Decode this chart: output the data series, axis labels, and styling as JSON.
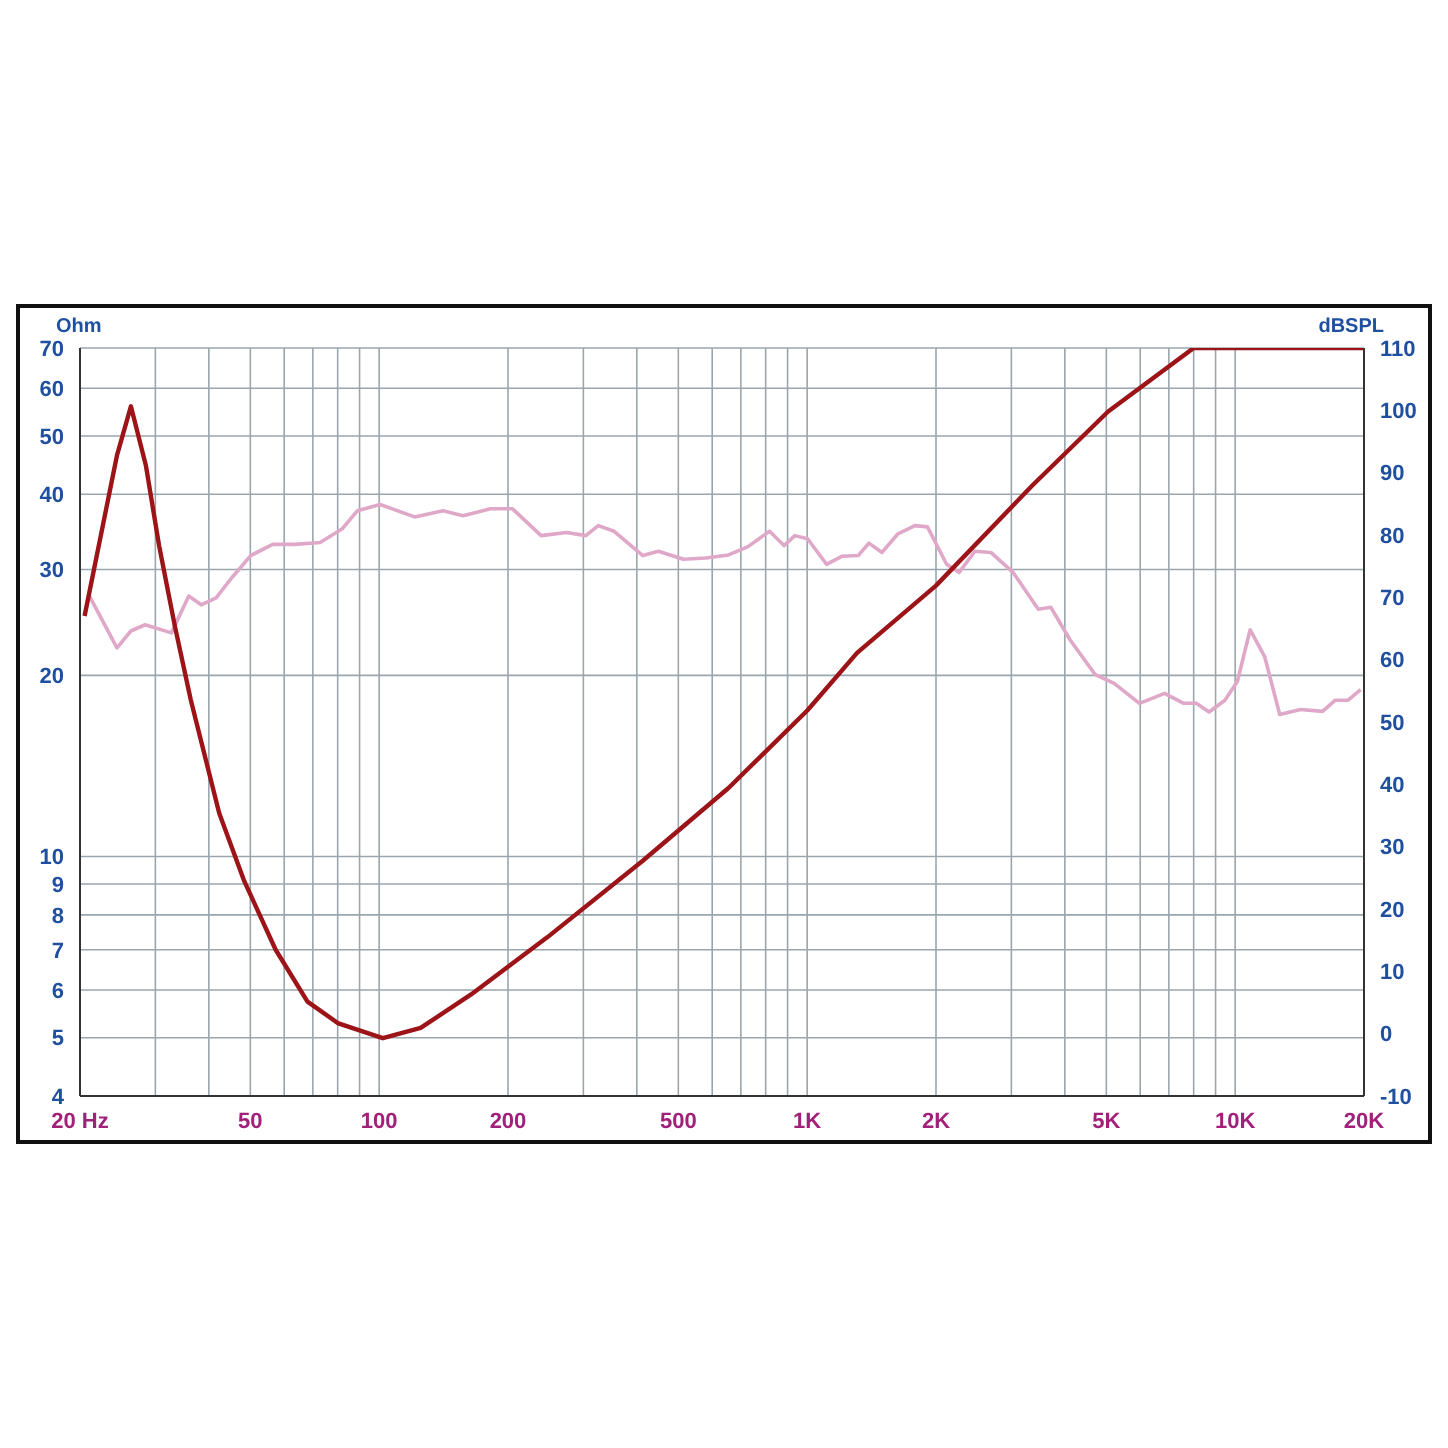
{
  "chart_data": {
    "type": "line",
    "ylabel": "Ohm",
    "y2label": "dBSPL",
    "log": "xy",
    "grid": true,
    "marker": "none",
    "line_style": "solid",
    "xlim": [
      20,
      20000
    ],
    "xticks": [
      {
        "value": 20,
        "label": "20  Hz"
      },
      {
        "value": 30,
        "label": null
      },
      {
        "value": 40,
        "label": null
      },
      50,
      {
        "value": 60,
        "label": null
      },
      {
        "value": 70,
        "label": null
      },
      {
        "value": 80,
        "label": null
      },
      {
        "value": 90,
        "label": null
      },
      100,
      200,
      {
        "value": 300,
        "label": null
      },
      {
        "value": 400,
        "label": null
      },
      500,
      {
        "value": 600,
        "label": null
      },
      {
        "value": 700,
        "label": null
      },
      {
        "value": 800,
        "label": null
      },
      {
        "value": 900,
        "label": null
      },
      {
        "value": 1000,
        "label": "1K"
      },
      {
        "value": 2000,
        "label": "2K"
      },
      {
        "value": 3000,
        "label": null
      },
      {
        "value": 4000,
        "label": null
      },
      {
        "value": 5000,
        "label": "5K"
      },
      {
        "value": 6000,
        "label": null
      },
      {
        "value": 7000,
        "label": null
      },
      {
        "value": 8000,
        "label": null
      },
      {
        "value": 9000,
        "label": null
      },
      {
        "value": 10000,
        "label": "10K"
      },
      {
        "value": 20000,
        "label": "20K"
      }
    ],
    "ylim": [
      4,
      70
    ],
    "yticks": [
      4,
      5,
      6,
      7,
      8,
      9,
      10,
      20,
      30,
      40,
      50,
      60,
      70
    ],
    "y2lim": [
      -10,
      110
    ],
    "y2ticks": [
      -10,
      0,
      10,
      20,
      30,
      40,
      50,
      60,
      70,
      80,
      90,
      100,
      110
    ],
    "series": [
      {
        "color": "#e0a8c8",
        "axis": "y2",
        "x": [
          21,
          24.4,
          26.3,
          28.4,
          32.7,
          35.9,
          38.4,
          41.6,
          45.2,
          50.1,
          56.4,
          63.5,
          72.8,
          82,
          89,
          100.5,
          121,
          141,
          157,
          182,
          205,
          239,
          274,
          304,
          325,
          354,
          413,
          449,
          514,
          580,
          655,
          726,
          817,
          883,
          936,
          1002,
          1110,
          1208,
          1316,
          1394,
          1496,
          1630,
          1786,
          1910,
          2118,
          2265,
          2466,
          2686,
          3028,
          3468,
          3710,
          4112,
          4710,
          5215,
          5975,
          6843,
          7580,
          8113,
          8690,
          9463,
          10120,
          10840,
          11720,
          12710,
          14220,
          16000,
          17140,
          18370,
          19640
        ],
        "values": [
          70.3,
          61.9,
          64.6,
          65.6,
          64.3,
          70.2,
          68.8,
          69.9,
          73.1,
          76.7,
          78.5,
          78.5,
          78.8,
          81,
          83.9,
          84.9,
          82.9,
          83.9,
          83.1,
          84.2,
          84.2,
          79.9,
          80.4,
          79.9,
          81.5,
          80.6,
          76.7,
          77.4,
          76.1,
          76.3,
          76.8,
          78.1,
          80.6,
          78.3,
          79.9,
          79.4,
          75.3,
          76.6,
          76.7,
          78.7,
          77.2,
          80.2,
          81.5,
          81.3,
          75.3,
          74,
          77.4,
          77.2,
          74,
          68.1,
          68.4,
          63.2,
          57.6,
          56.2,
          53,
          54.6,
          53,
          53,
          51.6,
          53.5,
          56.5,
          64.8,
          60.5,
          51.2,
          52,
          51.7,
          53.5,
          53.5,
          55.2
        ]
      },
      {
        "color": "#9c1418",
        "axis": "y",
        "x": [
          20.5,
          24.4,
          26.3,
          28.5,
          30.6,
          33.3,
          36.3,
          42.3,
          48.4,
          57.3,
          68,
          80.3,
          102,
          125,
          164,
          247,
          413,
          655,
          1002,
          1308,
          2000,
          3362,
          5050,
          8000,
          20000
        ],
        "values": [
          25.1,
          46.4,
          56,
          44.7,
          32.9,
          24.2,
          18.2,
          11.8,
          9.1,
          7,
          5.74,
          5.28,
          4.99,
          5.19,
          5.9,
          7.34,
          9.84,
          13,
          17.5,
          21.8,
          28.2,
          41.4,
          54.9,
          70,
          70
        ]
      }
    ]
  }
}
